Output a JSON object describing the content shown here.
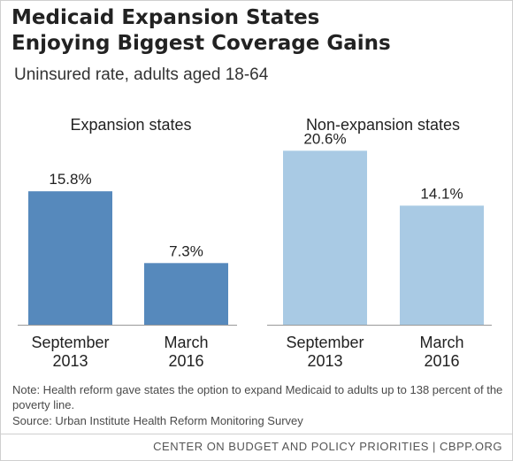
{
  "title_line1": "Medicaid Expansion States",
  "title_line2": "Enjoying Biggest Coverage Gains",
  "subtitle": "Uninsured rate, adults aged 18-64",
  "chart_data": [
    {
      "type": "bar",
      "title": "Expansion states",
      "categories": [
        "September 2013",
        "March 2016"
      ],
      "category_lines": [
        [
          "September",
          "2013"
        ],
        [
          "March",
          "2016"
        ]
      ],
      "values": [
        15.8,
        7.3
      ],
      "data_labels": [
        "15.8%",
        "7.3%"
      ],
      "color": "#5689bc",
      "ylim": [
        0,
        22
      ],
      "grid": false
    },
    {
      "type": "bar",
      "title": "Non-expansion states",
      "categories": [
        "September 2013",
        "March 2016"
      ],
      "category_lines": [
        [
          "September",
          "2013"
        ],
        [
          "March",
          "2016"
        ]
      ],
      "values": [
        20.6,
        14.1
      ],
      "data_labels": [
        "20.6%",
        "14.1%"
      ],
      "color": "#a9cae4",
      "ylim": [
        0,
        22
      ],
      "grid": false
    }
  ],
  "note": "Note: Health reform gave states the option to expand Medicaid to adults up to 138 percent of the poverty line.",
  "source": "Source: Urban Institute Health Reform Monitoring Survey",
  "footer": "CENTER ON BUDGET AND POLICY PRIORITIES | CBPP.ORG",
  "colors": {
    "axis": "#999999",
    "text": "#222222"
  }
}
